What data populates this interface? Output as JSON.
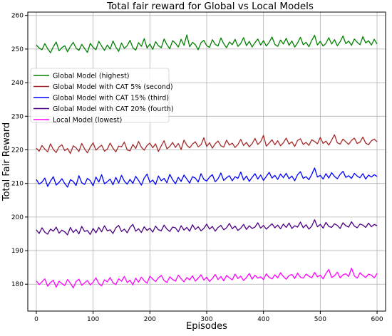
{
  "chart_data": {
    "type": "line",
    "title": "Total fair reward for Global vs Local Models",
    "xlabel": "Episodes",
    "ylabel": "Total Fair Reward",
    "xlim": [
      -15,
      615
    ],
    "ylim": [
      172,
      261
    ],
    "x_ticks": [
      0,
      100,
      200,
      300,
      400,
      500,
      600
    ],
    "y_ticks": [
      180,
      190,
      200,
      210,
      220,
      230,
      240,
      250,
      260
    ],
    "grid": true,
    "legend_position": "upper-left",
    "series_x_range": [
      0,
      600
    ],
    "series_points": 121,
    "series": [
      {
        "name": "Global Model (highest)",
        "color": "#008000",
        "values": [
          251.2,
          250.3,
          249.8,
          251.6,
          250.1,
          248.9,
          250.7,
          252.1,
          249.5,
          250.4,
          251.0,
          249.2,
          250.8,
          252.0,
          250.3,
          249.6,
          251.4,
          250.2,
          249.0,
          251.7,
          250.5,
          249.8,
          252.3,
          250.9,
          249.6,
          251.2,
          250.0,
          252.4,
          250.6,
          249.3,
          251.8,
          250.2,
          251.0,
          252.6,
          250.4,
          249.7,
          251.9,
          250.8,
          253.1,
          250.3,
          251.5,
          249.9,
          252.2,
          251.0,
          250.4,
          253.0,
          251.3,
          250.1,
          252.5,
          251.7,
          250.6,
          252.9,
          251.1,
          254.2,
          250.7,
          252.0,
          251.3,
          249.8,
          251.9,
          252.6,
          251.0,
          250.5,
          252.8,
          251.4,
          250.9,
          253.3,
          251.6,
          250.4,
          252.1,
          251.3,
          252.9,
          250.8,
          251.7,
          253.4,
          251.0,
          252.3,
          250.6,
          251.9,
          253.0,
          251.2,
          252.5,
          250.9,
          252.0,
          253.6,
          251.4,
          250.8,
          252.7,
          251.5,
          253.2,
          251.1,
          252.4,
          250.6,
          251.8,
          253.5,
          251.3,
          252.0,
          250.7,
          252.6,
          254.1,
          251.2,
          252.3,
          250.9,
          251.7,
          253.4,
          251.5,
          252.8,
          251.0,
          252.2,
          253.9,
          251.6,
          252.4,
          251.1,
          253.0,
          252.0,
          251.3,
          253.7,
          251.8,
          252.5,
          251.2,
          252.9,
          251.5
        ]
      },
      {
        "name": "Global Model with CAT 5% (second)",
        "color": "#a52a2a",
        "values": [
          220.5,
          219.6,
          221.3,
          220.2,
          219.4,
          221.8,
          220.1,
          219.2,
          220.9,
          221.5,
          219.8,
          220.4,
          218.9,
          221.2,
          220.6,
          219.5,
          221.9,
          220.3,
          219.1,
          220.8,
          222.1,
          219.9,
          220.7,
          221.4,
          219.6,
          220.2,
          222.0,
          220.5,
          219.4,
          221.1,
          220.9,
          222.3,
          220.0,
          219.7,
          221.6,
          220.4,
          222.5,
          220.8,
          219.9,
          221.3,
          222.0,
          220.6,
          221.8,
          219.5,
          221.2,
          222.7,
          220.3,
          221.0,
          222.2,
          220.7,
          221.9,
          220.1,
          222.9,
          221.4,
          220.6,
          221.7,
          222.4,
          220.9,
          221.5,
          223.6,
          221.0,
          222.1,
          220.5,
          221.8,
          222.6,
          221.2,
          220.8,
          222.9,
          221.4,
          222.0,
          220.7,
          221.6,
          223.1,
          221.3,
          222.2,
          220.9,
          221.8,
          223.4,
          221.6,
          222.4,
          224.3,
          221.1,
          222.0,
          223.0,
          221.5,
          222.7,
          221.2,
          222.1,
          223.5,
          221.7,
          222.4,
          221.0,
          222.8,
          223.3,
          221.6,
          222.2,
          221.3,
          223.0,
          222.5,
          221.8,
          223.7,
          221.9,
          222.6,
          221.4,
          222.9,
          224.5,
          222.1,
          221.7,
          223.2,
          222.4,
          221.6,
          222.8,
          223.5,
          221.9,
          222.3,
          223.8,
          222.0,
          221.5,
          222.7,
          223.2,
          222.4
        ]
      },
      {
        "name": "Global Model with CAT 15% (third)",
        "color": "#0000ff",
        "values": [
          211.2,
          209.8,
          210.4,
          211.6,
          209.1,
          210.7,
          212.0,
          209.5,
          210.3,
          211.4,
          210.0,
          208.9,
          211.1,
          210.6,
          209.4,
          212.3,
          210.2,
          209.7,
          211.5,
          210.8,
          209.3,
          211.9,
          210.4,
          212.6,
          209.9,
          210.5,
          211.3,
          209.6,
          211.8,
          210.1,
          212.4,
          210.7,
          209.8,
          211.2,
          210.0,
          212.1,
          210.9,
          209.5,
          211.6,
          212.8,
          210.3,
          211.0,
          209.7,
          212.2,
          210.8,
          211.5,
          210.2,
          212.7,
          211.1,
          209.9,
          211.8,
          210.6,
          212.5,
          211.3,
          210.1,
          212.0,
          211.6,
          210.4,
          212.9,
          211.2,
          210.7,
          211.9,
          212.6,
          210.5,
          211.4,
          213.1,
          210.9,
          211.7,
          212.3,
          210.8,
          212.0,
          211.5,
          213.4,
          211.0,
          212.2,
          210.6,
          211.8,
          212.9,
          211.3,
          212.5,
          210.9,
          212.1,
          213.3,
          211.6,
          212.4,
          211.2,
          212.8,
          211.7,
          213.0,
          211.4,
          212.2,
          210.8,
          212.6,
          213.5,
          211.5,
          212.0,
          211.1,
          212.7,
          214.6,
          211.9,
          212.4,
          211.3,
          212.9,
          211.6,
          213.2,
          212.1,
          211.4,
          212.7,
          213.6,
          211.8,
          212.3,
          211.5,
          213.0,
          212.2,
          211.7,
          212.9,
          211.3,
          212.5,
          211.9,
          212.6,
          212.1
        ]
      },
      {
        "name": "Global Model with CAT 20% (fourth)",
        "color": "#4b0082",
        "values": [
          196.2,
          195.1,
          196.8,
          195.5,
          194.9,
          196.4,
          195.8,
          197.0,
          195.2,
          196.1,
          195.6,
          194.7,
          196.9,
          195.4,
          196.3,
          195.0,
          197.2,
          195.7,
          196.0,
          194.8,
          196.6,
          195.3,
          196.9,
          195.6,
          197.4,
          195.9,
          196.2,
          195.1,
          196.8,
          197.5,
          195.7,
          196.4,
          195.3,
          196.9,
          197.8,
          195.8,
          196.5,
          195.4,
          197.1,
          196.0,
          196.7,
          195.5,
          197.3,
          196.2,
          195.9,
          197.6,
          196.4,
          195.7,
          197.0,
          196.8,
          195.6,
          197.4,
          196.1,
          196.9,
          195.8,
          197.7,
          196.3,
          197.1,
          195.9,
          196.6,
          197.9,
          196.4,
          197.2,
          195.8,
          196.9,
          197.5,
          196.2,
          196.8,
          198.1,
          196.5,
          197.3,
          196.0,
          196.7,
          197.8,
          196.3,
          197.4,
          196.6,
          197.0,
          198.3,
          196.7,
          197.5,
          196.4,
          197.2,
          198.0,
          196.8,
          197.6,
          196.5,
          197.9,
          196.9,
          198.2,
          196.6,
          197.4,
          197.0,
          198.5,
          196.8,
          197.7,
          196.4,
          197.3,
          199.2,
          197.1,
          197.8,
          196.7,
          198.4,
          197.2,
          196.9,
          198.0,
          197.5,
          196.6,
          198.3,
          197.4,
          197.0,
          198.6,
          197.3,
          196.8,
          197.9,
          197.6,
          196.9,
          198.2,
          197.1,
          197.8,
          197.4
        ]
      },
      {
        "name": "Local Model (lowest)",
        "color": "#ff00ff",
        "values": [
          181.0,
          179.9,
          180.7,
          181.6,
          179.4,
          180.5,
          181.2,
          179.1,
          180.9,
          180.2,
          179.6,
          181.4,
          180.3,
          178.9,
          180.8,
          181.5,
          179.7,
          180.4,
          181.1,
          179.8,
          180.6,
          181.9,
          180.2,
          179.5,
          181.3,
          180.7,
          182.0,
          180.4,
          179.9,
          181.6,
          180.9,
          182.3,
          180.5,
          181.2,
          179.8,
          181.8,
          180.6,
          182.1,
          181.0,
          180.3,
          182.4,
          181.5,
          180.8,
          181.9,
          182.6,
          181.1,
          180.5,
          182.2,
          181.4,
          180.9,
          182.7,
          181.6,
          180.7,
          182.0,
          181.3,
          182.5,
          180.9,
          181.8,
          182.8,
          181.2,
          182.1,
          180.8,
          181.7,
          182.9,
          181.4,
          182.3,
          181.0,
          182.6,
          181.9,
          181.3,
          183.0,
          181.7,
          182.4,
          181.1,
          182.0,
          183.2,
          181.5,
          182.7,
          181.8,
          182.2,
          181.4,
          183.1,
          182.0,
          181.6,
          182.8,
          181.9,
          183.4,
          182.3,
          181.5,
          182.6,
          182.9,
          181.7,
          183.3,
          182.1,
          181.8,
          183.0,
          182.4,
          181.9,
          183.5,
          182.2,
          182.7,
          181.6,
          183.2,
          184.4,
          182.0,
          182.5,
          183.6,
          181.9,
          182.8,
          183.1,
          182.3,
          184.8,
          182.5,
          181.8,
          183.4,
          182.6,
          182.0,
          183.0,
          182.7,
          181.9,
          183.2
        ]
      }
    ]
  }
}
